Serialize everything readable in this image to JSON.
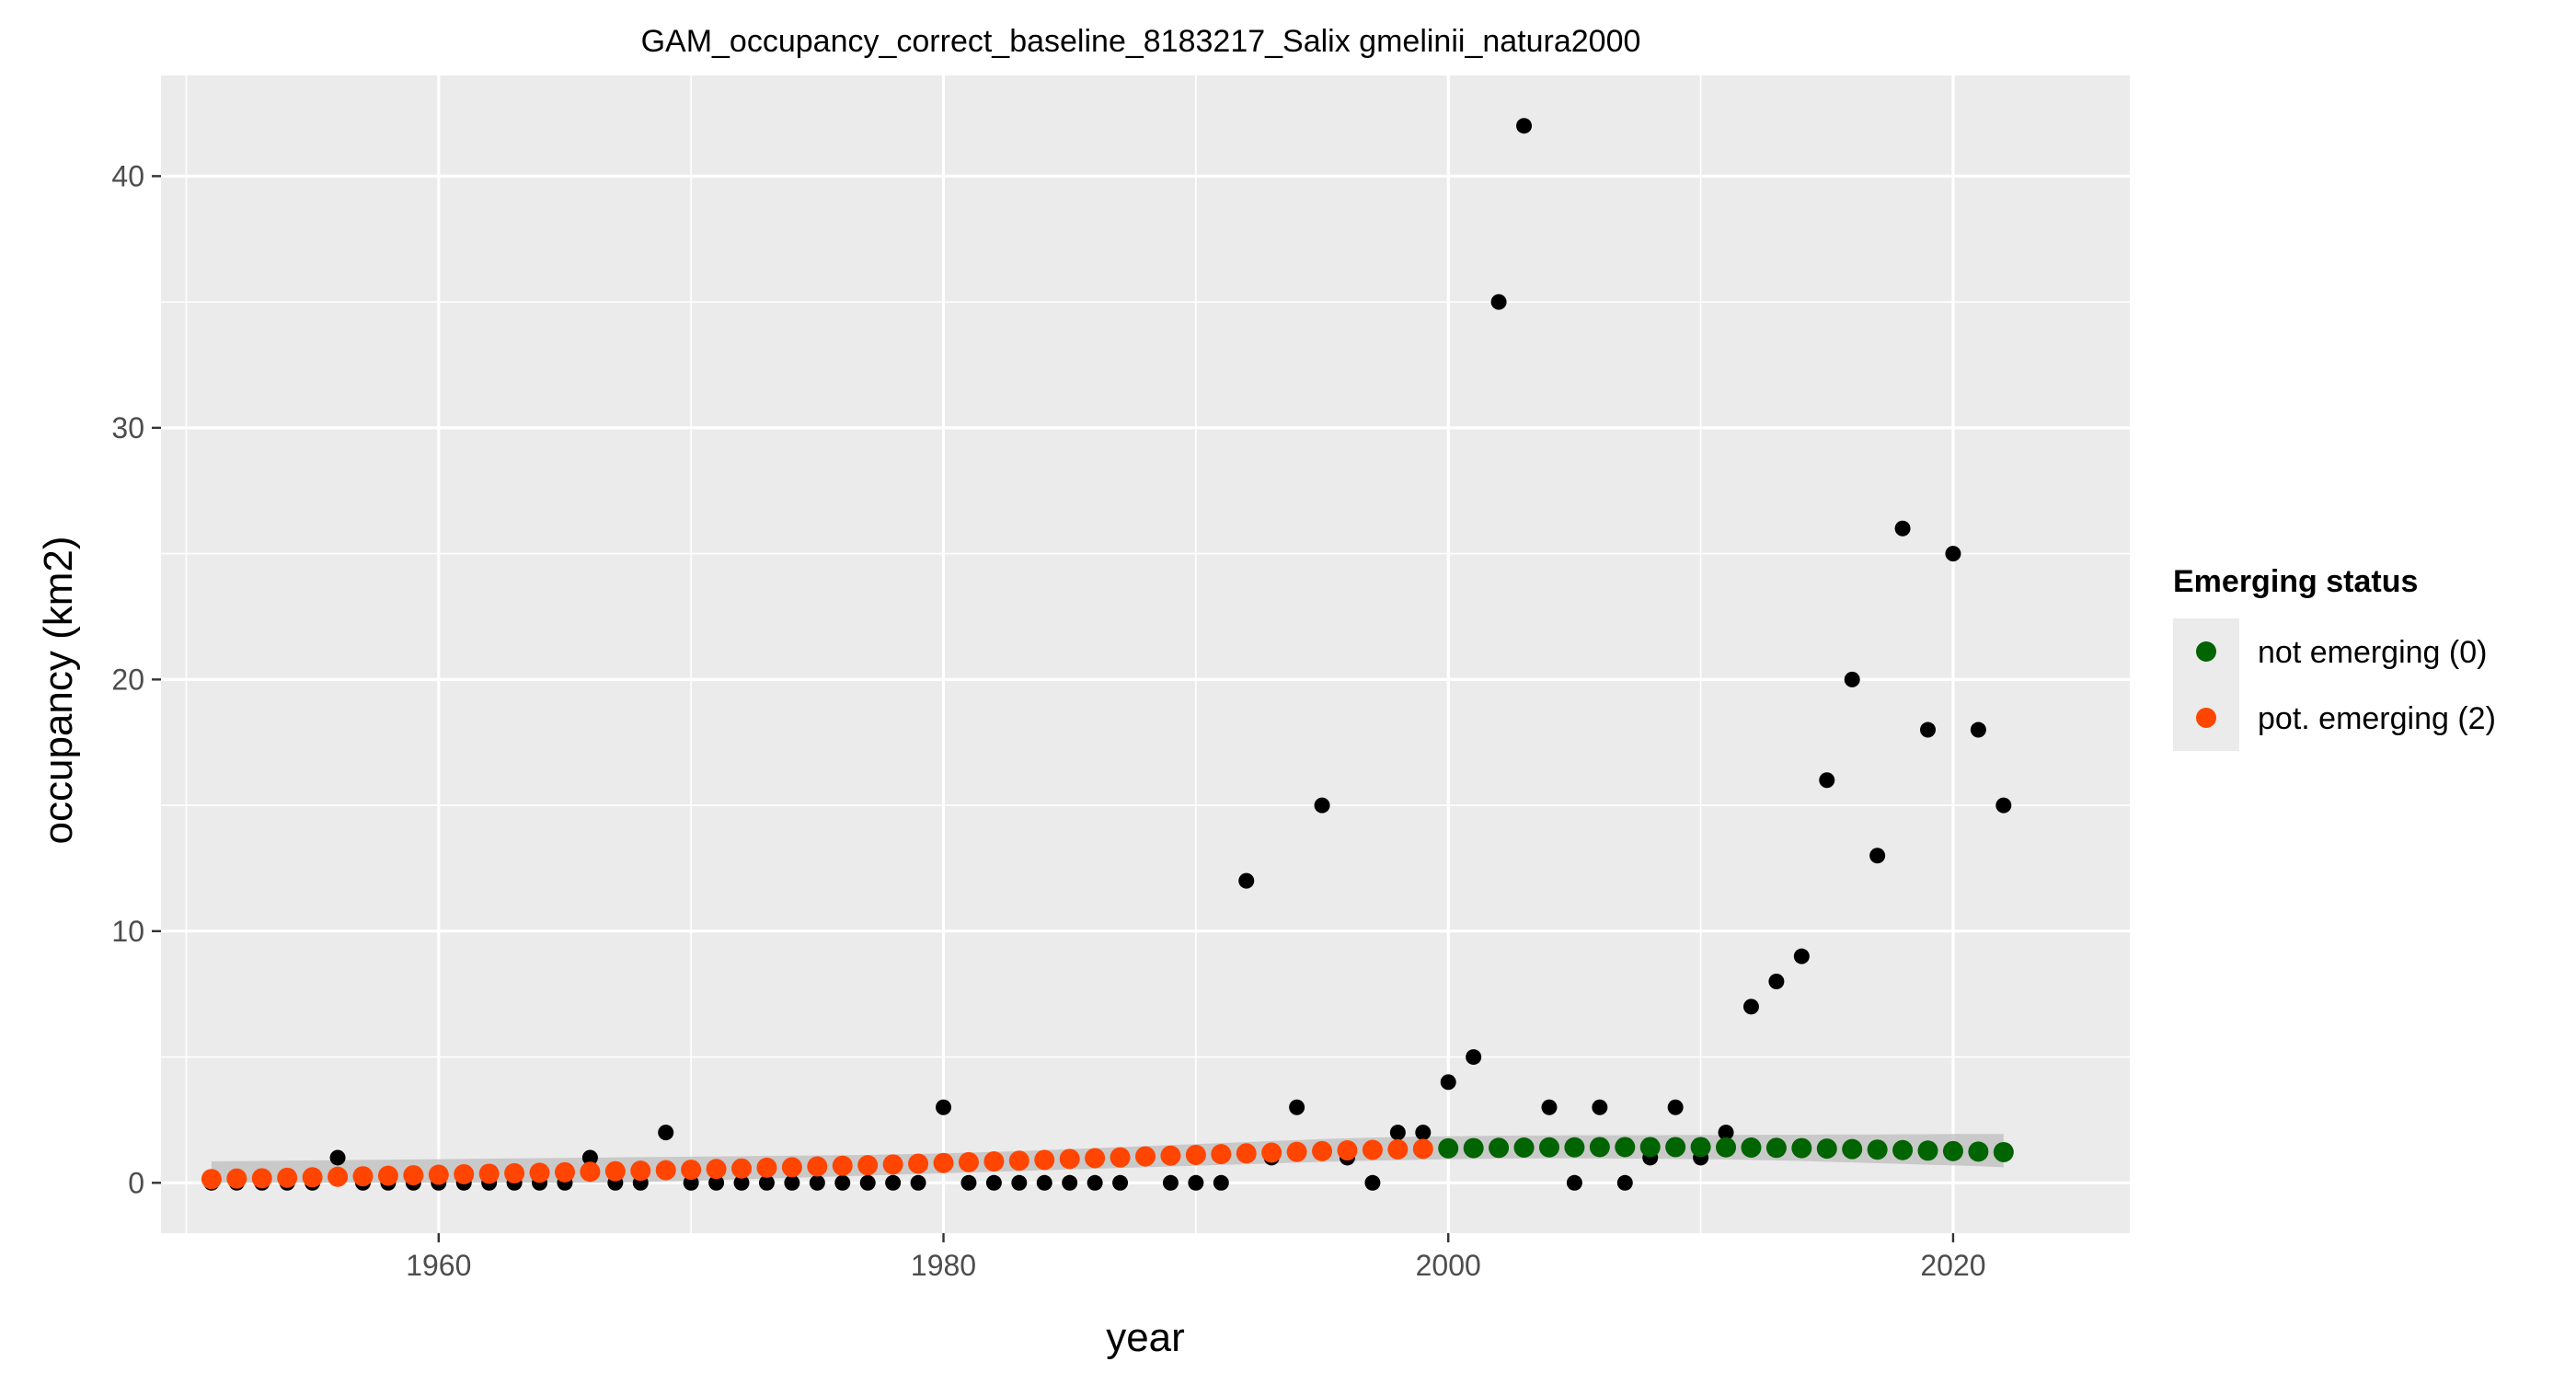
{
  "chart_data": {
    "type": "scatter",
    "title": "GAM_occupancy_correct_baseline_8183217_Salix gmelinii_natura2000",
    "xlabel": "year",
    "ylabel": "occupancy (km2)",
    "xlim": [
      1949,
      2027
    ],
    "ylim": [
      -2,
      44
    ],
    "x_ticks": [
      1960,
      1980,
      2000,
      2020
    ],
    "x_tick_labels": [
      "1960",
      "1980",
      "2000",
      "2020"
    ],
    "y_ticks": [
      0,
      10,
      20,
      30,
      40
    ],
    "y_tick_labels": [
      "0",
      "10",
      "20",
      "30",
      "40"
    ],
    "grid": true,
    "legend": {
      "title": "Emerging status",
      "position": "right",
      "entries": [
        {
          "label": "not emerging (0)",
          "color": "#006400"
        },
        {
          "label": "pot. emerging (2)",
          "color": "#ff4500"
        }
      ]
    },
    "colors": {
      "observed": "#000000",
      "not_emerging": "#006400",
      "pot_emerging": "#ff4500",
      "ribbon": "#bebebe",
      "panel": "#ebebeb",
      "grid": "#ffffff"
    },
    "series": [
      {
        "role": "observed",
        "x": [
          1951,
          1952,
          1953,
          1954,
          1955,
          1956,
          1957,
          1958,
          1959,
          1960,
          1961,
          1962,
          1963,
          1964,
          1965,
          1966,
          1967,
          1968,
          1969,
          1970,
          1971,
          1972,
          1973,
          1974,
          1975,
          1976,
          1977,
          1978,
          1979,
          1980,
          1981,
          1982,
          1983,
          1984,
          1985,
          1986,
          1987,
          1989,
          1990,
          1991,
          1992,
          1993,
          1994,
          1995,
          1996,
          1997,
          1998,
          1999,
          2000,
          2001,
          2002,
          2003,
          2004,
          2005,
          2006,
          2007,
          2008,
          2009,
          2010,
          2011,
          2012,
          2013,
          2014,
          2015,
          2016,
          2017,
          2018,
          2019,
          2020,
          2021,
          2022
        ],
        "y": [
          0,
          0,
          0,
          0,
          0,
          1,
          0,
          0,
          0,
          0,
          0,
          0,
          0,
          0,
          0,
          1,
          0,
          0,
          2,
          0,
          0,
          0,
          0,
          0,
          0,
          0,
          0,
          0,
          0,
          3,
          0,
          0,
          0,
          0,
          0,
          0,
          0,
          0,
          0,
          0,
          12,
          1,
          3,
          15,
          1,
          0,
          2,
          2,
          4,
          5,
          35,
          42,
          3,
          0,
          3,
          0,
          1,
          3,
          1,
          2,
          7,
          8,
          9,
          16,
          20,
          13,
          26,
          18,
          25,
          18,
          15
        ]
      },
      {
        "role": "gam_fit",
        "x": [
          1951,
          1952,
          1953,
          1954,
          1955,
          1956,
          1957,
          1958,
          1959,
          1960,
          1961,
          1962,
          1963,
          1964,
          1965,
          1966,
          1967,
          1968,
          1969,
          1970,
          1971,
          1972,
          1973,
          1974,
          1975,
          1976,
          1977,
          1978,
          1979,
          1980,
          1981,
          1982,
          1983,
          1984,
          1985,
          1986,
          1987,
          1988,
          1989,
          1990,
          1991,
          1992,
          1993,
          1994,
          1995,
          1996,
          1997,
          1998,
          1999,
          2000,
          2001,
          2002,
          2003,
          2004,
          2005,
          2006,
          2007,
          2008,
          2009,
          2010,
          2011,
          2012,
          2013,
          2014,
          2015,
          2016,
          2017,
          2018,
          2019,
          2020,
          2021,
          2022
        ],
        "y": [
          0.15,
          0.17,
          0.18,
          0.2,
          0.22,
          0.24,
          0.26,
          0.28,
          0.3,
          0.32,
          0.34,
          0.36,
          0.38,
          0.4,
          0.42,
          0.44,
          0.46,
          0.48,
          0.5,
          0.52,
          0.55,
          0.57,
          0.6,
          0.62,
          0.65,
          0.68,
          0.7,
          0.73,
          0.76,
          0.79,
          0.82,
          0.85,
          0.88,
          0.91,
          0.95,
          0.98,
          1.01,
          1.05,
          1.08,
          1.11,
          1.14,
          1.17,
          1.2,
          1.23,
          1.26,
          1.29,
          1.31,
          1.33,
          1.35,
          1.37,
          1.38,
          1.39,
          1.4,
          1.41,
          1.41,
          1.42,
          1.42,
          1.42,
          1.42,
          1.42,
          1.41,
          1.4,
          1.39,
          1.38,
          1.36,
          1.34,
          1.32,
          1.3,
          1.28,
          1.26,
          1.24,
          1.22
        ],
        "lower": [
          0,
          0,
          0,
          0,
          0,
          0,
          0,
          0,
          0,
          0,
          0,
          0,
          0,
          0,
          0,
          0,
          0.01,
          0.03,
          0.05,
          0.08,
          0.11,
          0.14,
          0.17,
          0.2,
          0.23,
          0.26,
          0.29,
          0.32,
          0.35,
          0.38,
          0.41,
          0.44,
          0.47,
          0.5,
          0.53,
          0.56,
          0.59,
          0.62,
          0.65,
          0.68,
          0.71,
          0.74,
          0.77,
          0.8,
          0.83,
          0.86,
          0.88,
          0.9,
          0.92,
          0.94,
          0.95,
          0.96,
          0.97,
          0.97,
          0.97,
          0.97,
          0.96,
          0.96,
          0.95,
          0.94,
          0.93,
          0.91,
          0.89,
          0.87,
          0.84,
          0.81,
          0.78,
          0.75,
          0.72,
          0.69,
          0.66,
          0.62
        ],
        "upper": [
          0.85,
          0.86,
          0.87,
          0.88,
          0.89,
          0.9,
          0.91,
          0.92,
          0.93,
          0.94,
          0.95,
          0.96,
          0.97,
          0.98,
          0.99,
          1.0,
          1.01,
          1.02,
          1.03,
          1.04,
          1.05,
          1.06,
          1.07,
          1.08,
          1.09,
          1.1,
          1.11,
          1.13,
          1.15,
          1.17,
          1.2,
          1.23,
          1.26,
          1.3,
          1.34,
          1.38,
          1.42,
          1.46,
          1.5,
          1.54,
          1.58,
          1.62,
          1.66,
          1.7,
          1.74,
          1.77,
          1.8,
          1.82,
          1.84,
          1.85,
          1.86,
          1.87,
          1.88,
          1.88,
          1.89,
          1.89,
          1.89,
          1.89,
          1.9,
          1.9,
          1.9,
          1.91,
          1.91,
          1.91,
          1.92,
          1.92,
          1.92,
          1.93,
          1.93,
          1.94,
          1.94,
          1.94
        ],
        "status": [
          2,
          2,
          2,
          2,
          2,
          2,
          2,
          2,
          2,
          2,
          2,
          2,
          2,
          2,
          2,
          2,
          2,
          2,
          2,
          2,
          2,
          2,
          2,
          2,
          2,
          2,
          2,
          2,
          2,
          2,
          2,
          2,
          2,
          2,
          2,
          2,
          2,
          2,
          2,
          2,
          2,
          2,
          2,
          2,
          2,
          2,
          2,
          2,
          2,
          0,
          0,
          0,
          0,
          0,
          0,
          0,
          0,
          0,
          0,
          0,
          0,
          0,
          0,
          0,
          0,
          0,
          0,
          0,
          0,
          0,
          0,
          0
        ]
      }
    ]
  }
}
